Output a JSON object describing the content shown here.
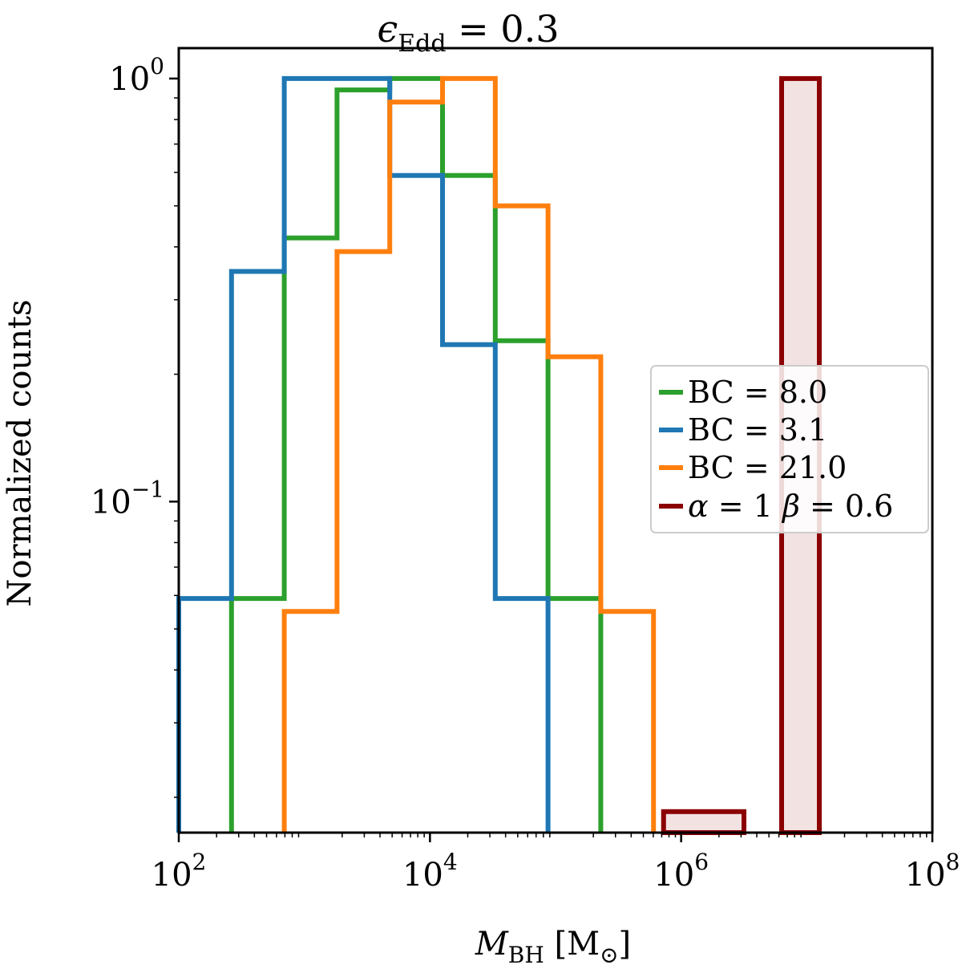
{
  "chart_data": {
    "type": "histogram-step",
    "title": {
      "symbol": "ϵ",
      "subscript": "Edd",
      "rest": " = 0.3"
    },
    "xlabel": {
      "symbol": "M",
      "subscript": "BH",
      "unit": " [M",
      "unit_sub": "⊙",
      "unit_close": "]"
    },
    "ylabel": "Normalized counts",
    "xscale": "log",
    "yscale": "log",
    "xlim": [
      100,
      100000000
    ],
    "ylim": [
      0.0165,
      1.18
    ],
    "x_ticks": [
      {
        "value": 100,
        "base": "10",
        "exp": "2"
      },
      {
        "value": 10000,
        "base": "10",
        "exp": "4"
      },
      {
        "value": 1000000,
        "base": "10",
        "exp": "6"
      },
      {
        "value": 100000000,
        "base": "10",
        "exp": "8"
      }
    ],
    "y_ticks": [
      {
        "value": 1,
        "base": "10",
        "exp": "0"
      },
      {
        "value": 0.1,
        "base": "10",
        "exp": "−1"
      }
    ],
    "legend_position": "center-right",
    "series": [
      {
        "name": "BC = 8.0",
        "label": "BC = 8.0",
        "color": "#2ca02c",
        "style": "step",
        "edges_log10": [
          2.42,
          2.84,
          3.26,
          3.68,
          4.1,
          4.52,
          4.94,
          5.36
        ],
        "values": [
          0.059,
          0.42,
          0.94,
          1.0,
          0.59,
          0.24,
          0.059
        ]
      },
      {
        "name": "BC = 3.1",
        "label": "BC = 3.1",
        "color": "#1f77b4",
        "style": "step",
        "edges_log10": [
          2.0,
          2.42,
          2.84,
          3.68,
          4.1,
          4.52,
          4.94
        ],
        "values": [
          0.059,
          0.35,
          1.0,
          0.59,
          0.235,
          0.059
        ]
      },
      {
        "name": "BC = 21.0",
        "label": "BC = 21.0",
        "color": "#ff7f0e",
        "style": "step",
        "edges_log10": [
          2.84,
          3.26,
          3.68,
          4.1,
          4.52,
          4.94,
          5.36,
          5.78
        ],
        "values": [
          0.055,
          0.39,
          0.88,
          1.0,
          0.5,
          0.22,
          0.055
        ]
      },
      {
        "name": "alpha=1 beta=0.6",
        "label_parts": {
          "a": "α",
          "b": " = 1 ",
          "c": "β",
          "d": " = 0.6"
        },
        "color": "#8b0000",
        "fill": "#f2e2e2",
        "style": "bars",
        "bars": [
          {
            "left_log10": 5.86,
            "right_log10": 6.5,
            "value": 0.0185
          },
          {
            "left_log10": 6.8,
            "right_log10": 7.1,
            "value": 1.0
          }
        ]
      }
    ]
  }
}
